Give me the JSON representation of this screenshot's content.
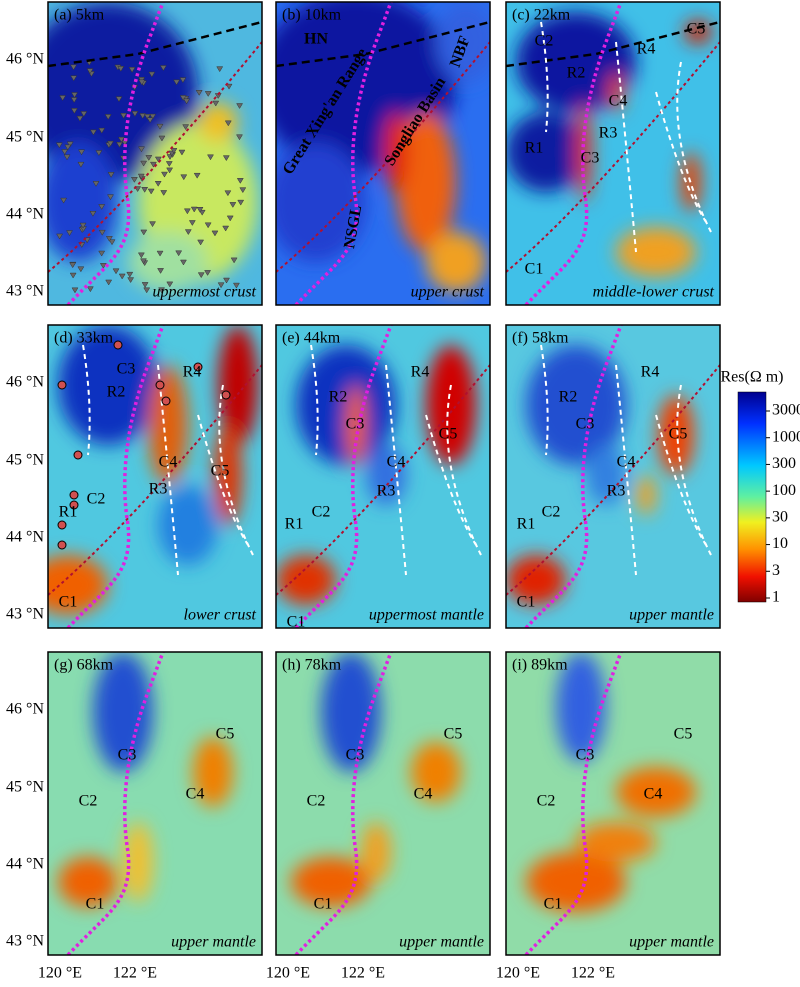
{
  "panels": [
    {
      "label": "(a) 5km",
      "layer": "uppermost crust",
      "annotations": []
    },
    {
      "label": "(b) 10km",
      "layer": "upper crust",
      "annotations": [
        "Great Xing'an Range",
        "Songliao Basin",
        "NSGL",
        "NBF",
        "HN"
      ]
    },
    {
      "label": "(c) 22km",
      "layer": "middle-lower crust",
      "annotations": [
        "C2",
        "R2",
        "R4",
        "C5",
        "C4",
        "R3",
        "R1",
        "C3",
        "C1"
      ]
    },
    {
      "label": "(d) 33km",
      "layer": "lower crust",
      "annotations": [
        "R2",
        "R4",
        "C3",
        "C5",
        "C2",
        "C4",
        "R1",
        "R3",
        "C1"
      ]
    },
    {
      "label": "(e) 44km",
      "layer": "uppermost mantle",
      "annotations": [
        "R2",
        "R4",
        "C3",
        "C5",
        "C4",
        "R1",
        "C2",
        "R3",
        "C1"
      ]
    },
    {
      "label": "(f) 58km",
      "layer": "upper mantle",
      "annotations": [
        "R2",
        "R4",
        "C3",
        "C5",
        "R1",
        "C4",
        "C2",
        "R3",
        "C1"
      ]
    },
    {
      "label": "(g) 68km",
      "layer": "upper mantle",
      "annotations": [
        "C3",
        "C5",
        "C2",
        "C4",
        "C1"
      ]
    },
    {
      "label": "(h) 78km",
      "layer": "upper mantle",
      "annotations": [
        "C3",
        "C5",
        "C2",
        "C4",
        "C1"
      ]
    },
    {
      "label": "(i) 89km",
      "layer": "upper mantle",
      "annotations": [
        "C3",
        "C5",
        "C2",
        "C4",
        "C1"
      ]
    }
  ],
  "lat_labels": [
    "46 °N",
    "45 °N",
    "44 °N",
    "43 °N"
  ],
  "lon_labels": [
    "120 °E",
    "122 °E"
  ],
  "colorbar": {
    "title": "Res(Ω m)",
    "ticks": [
      "3000",
      "1000",
      "300",
      "100",
      "30",
      "10",
      "3",
      "1"
    ]
  }
}
